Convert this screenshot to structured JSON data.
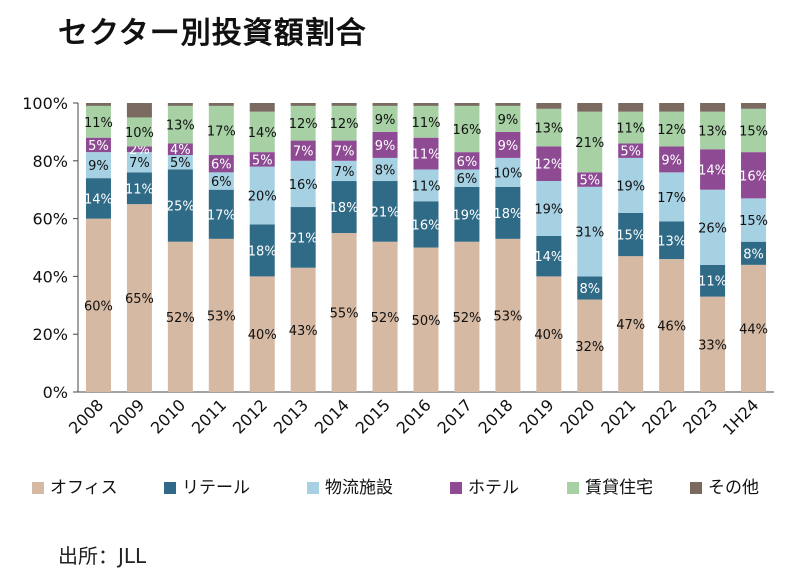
{
  "chart_data": {
    "type": "bar",
    "stacked": true,
    "title": "セクター別投資額割合",
    "source": "出所：JLL",
    "categories": [
      "2008",
      "2009",
      "2010",
      "2011",
      "2012",
      "2013",
      "2014",
      "2015",
      "2016",
      "2017",
      "2018",
      "2019",
      "2020",
      "2021",
      "2022",
      "2023",
      "1H24"
    ],
    "ylim": [
      0,
      100
    ],
    "yticks": [
      "0%",
      "20%",
      "40%",
      "60%",
      "80%",
      "100%"
    ],
    "legend_position": "bottom",
    "series": [
      {
        "name": "オフィス",
        "color": "#d6b9a3",
        "values": [
          60,
          65,
          52,
          53,
          40,
          43,
          55,
          52,
          50,
          52,
          53,
          40,
          32,
          47,
          46,
          33,
          44
        ],
        "labels": [
          "60%",
          "65%",
          "52%",
          "53%",
          "40%",
          "43%",
          "55%",
          "52%",
          "50%",
          "52%",
          "53%",
          "40%",
          "32%",
          "47%",
          "46%",
          "33%",
          "44%"
        ]
      },
      {
        "name": "リテール",
        "color": "#2f6a86",
        "values": [
          14,
          11,
          25,
          17,
          18,
          21,
          18,
          21,
          16,
          19,
          18,
          14,
          8,
          15,
          13,
          11,
          8
        ],
        "labels": [
          "14%",
          "11%",
          "25%",
          "17%",
          "18%",
          "21%",
          "18%",
          "21%",
          "16%",
          "19%",
          "18%",
          "14%",
          "8%",
          "15%",
          "13%",
          "11%",
          "8%"
        ]
      },
      {
        "name": "物流施設",
        "color": "#a6d1e3",
        "values": [
          9,
          7,
          5,
          6,
          20,
          16,
          7,
          8,
          11,
          6,
          10,
          19,
          31,
          19,
          17,
          26,
          15
        ],
        "labels": [
          "9%",
          "7%",
          "5%",
          "6%",
          "20%",
          "16%",
          "7%",
          "8%",
          "11%",
          "6%",
          "10%",
          "19%",
          "31%",
          "19%",
          "17%",
          "26%",
          "15%"
        ]
      },
      {
        "name": "ホテル",
        "color": "#8e4b94",
        "values": [
          5,
          2,
          4,
          6,
          5,
          7,
          7,
          9,
          11,
          6,
          9,
          12,
          5,
          5,
          9,
          14,
          16
        ],
        "labels": [
          "5%",
          "2%",
          "4%",
          "6%",
          "5%",
          "7%",
          "7%",
          "9%",
          "11%",
          "6%",
          "9%",
          "12%",
          "5%",
          "5%",
          "9%",
          "14%",
          "16%"
        ]
      },
      {
        "name": "賃貸住宅",
        "color": "#a7d1a4",
        "values": [
          11,
          10,
          13,
          17,
          14,
          12,
          12,
          9,
          11,
          16,
          9,
          13,
          21,
          11,
          12,
          13,
          15
        ],
        "labels": [
          "11%",
          "10%",
          "13%",
          "17%",
          "14%",
          "12%",
          "12%",
          "9%",
          "11%",
          "16%",
          "9%",
          "13%",
          "21%",
          "11%",
          "12%",
          "13%",
          "15%"
        ]
      },
      {
        "name": "その他",
        "color": "#7a6a60",
        "values": [
          1,
          5,
          1,
          1,
          3,
          1,
          1,
          1,
          1,
          1,
          1,
          2,
          3,
          3,
          3,
          3,
          2
        ],
        "labels": [
          "",
          "",
          "",
          "",
          "",
          "",
          "",
          "",
          "",
          "",
          "",
          "",
          "",
          "",
          "",
          "",
          ""
        ]
      }
    ]
  }
}
